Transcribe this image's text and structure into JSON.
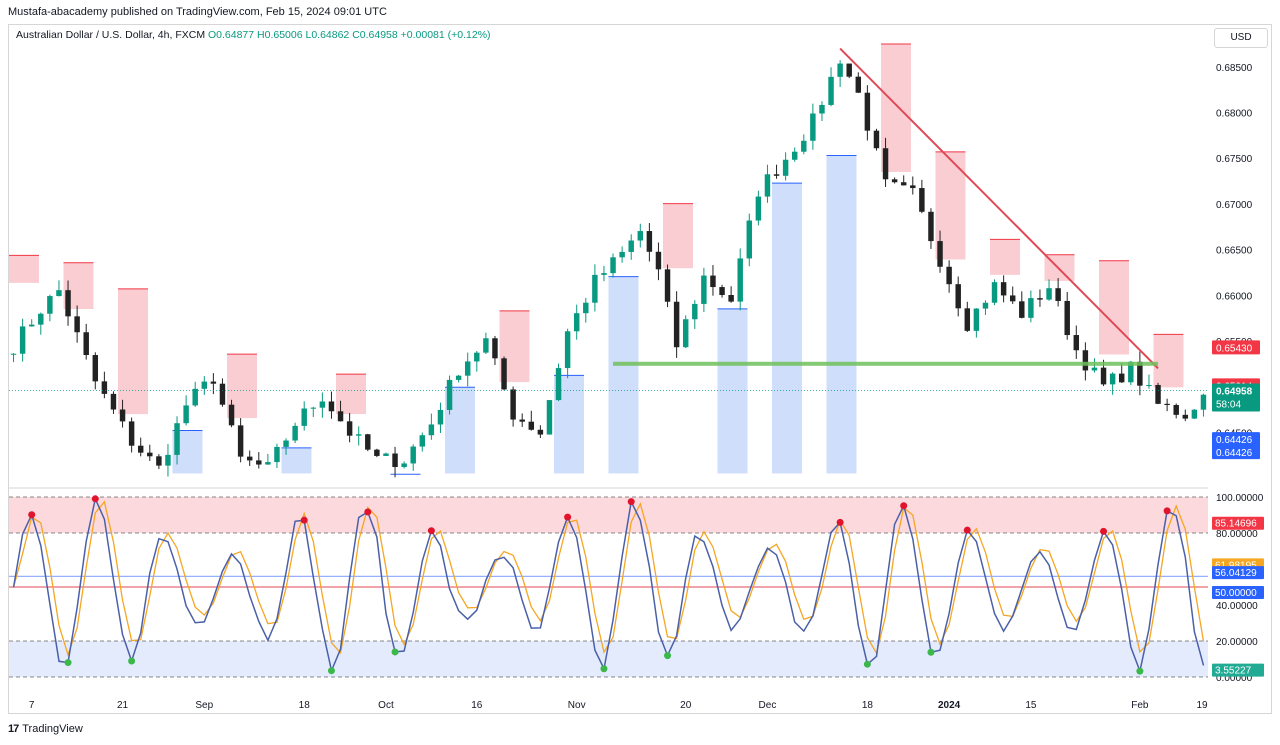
{
  "header": {
    "published": "Mustafa-abacademy published on TradingView.com, Feb 15, 2024 09:01 UTC"
  },
  "legend": {
    "symbol": "Australian Dollar / U.S. Dollar, 4h, FXCM",
    "ohlc": "O0.64877 H0.65006 L0.64862 C0.64958 +0.00081 (+0.12%)"
  },
  "currency_button": "USD",
  "footer": {
    "brand": "TradingView"
  },
  "colors": {
    "up": "#089981",
    "down": "#f23645",
    "resistance": "#f8c8cc",
    "support": "#c9dafb",
    "trendline": "#e04856",
    "horizontal": "#6fc05a",
    "osc_k": "#4a60a8",
    "osc_d": "#f5a623"
  },
  "chart_data": [
    {
      "type": "candlestick",
      "pane": "price",
      "ylim": [
        0.64,
        0.6875
      ],
      "y_ticks": [
        "0.68500",
        "0.68000",
        "0.67500",
        "0.67000",
        "0.66500",
        "0.66000",
        "0.65500",
        "0.64500"
      ],
      "x_ticks": [
        "7",
        "21",
        "Sep",
        "18",
        "Oct",
        "16",
        "Nov",
        "20",
        "Dec",
        "18",
        "2024",
        "15",
        "Feb",
        "19"
      ],
      "last_price": "0.64958",
      "countdown": "58:04",
      "price_labels": [
        {
          "value": "0.65430",
          "color": "#f23645"
        },
        {
          "value": "0.65014",
          "color": "#f23645"
        },
        {
          "value": "0.64426",
          "color": "#2962ff"
        },
        {
          "value": "0.64426",
          "color": "#2962ff"
        }
      ],
      "swing_path": [
        [
          0,
          0.6545
        ],
        [
          3,
          0.6585
        ],
        [
          5,
          0.6605
        ],
        [
          9,
          0.6505
        ],
        [
          13,
          0.644
        ],
        [
          16,
          0.641
        ],
        [
          19,
          0.648
        ],
        [
          22,
          0.651
        ],
        [
          25,
          0.642
        ],
        [
          28,
          0.641
        ],
        [
          31,
          0.646
        ],
        [
          34,
          0.649
        ],
        [
          37,
          0.645
        ],
        [
          40,
          0.642
        ],
        [
          43,
          0.642
        ],
        [
          46,
          0.646
        ],
        [
          49,
          0.652
        ],
        [
          52,
          0.655
        ],
        [
          55,
          0.647
        ],
        [
          58,
          0.645
        ],
        [
          61,
          0.656
        ],
        [
          64,
          0.6615
        ],
        [
          67,
          0.6645
        ],
        [
          69,
          0.667
        ],
        [
          71,
          0.6625
        ],
        [
          73,
          0.6545
        ],
        [
          76,
          0.662
        ],
        [
          79,
          0.6595
        ],
        [
          82,
          0.6715
        ],
        [
          85,
          0.675
        ],
        [
          88,
          0.679
        ],
        [
          91,
          0.686
        ],
        [
          93,
          0.682
        ],
        [
          96,
          0.672
        ],
        [
          99,
          0.671
        ],
        [
          102,
          0.664
        ],
        [
          105,
          0.657
        ],
        [
          108,
          0.661
        ],
        [
          111,
          0.658
        ],
        [
          114,
          0.661
        ],
        [
          117,
          0.654
        ],
        [
          120,
          0.65
        ],
        [
          123,
          0.652
        ],
        [
          126,
          0.648
        ],
        [
          129,
          0.647
        ],
        [
          131,
          0.649
        ]
      ]
    },
    {
      "type": "line",
      "pane": "oscillator",
      "ylim": [
        0,
        100
      ],
      "y_ticks": [
        "100.00000",
        "80.00000",
        "40.00000",
        "20.00000",
        "0.00000"
      ],
      "levels": [
        {
          "value": "85.14696",
          "color": "#f23645"
        },
        {
          "value": "61.98195",
          "color": "#f5a623"
        },
        {
          "value": "56.04129",
          "color": "#2962ff"
        },
        {
          "value": "50.00000",
          "color": "#2962ff"
        },
        {
          "value": "3.55227",
          "color": "#22ab94"
        }
      ]
    }
  ]
}
